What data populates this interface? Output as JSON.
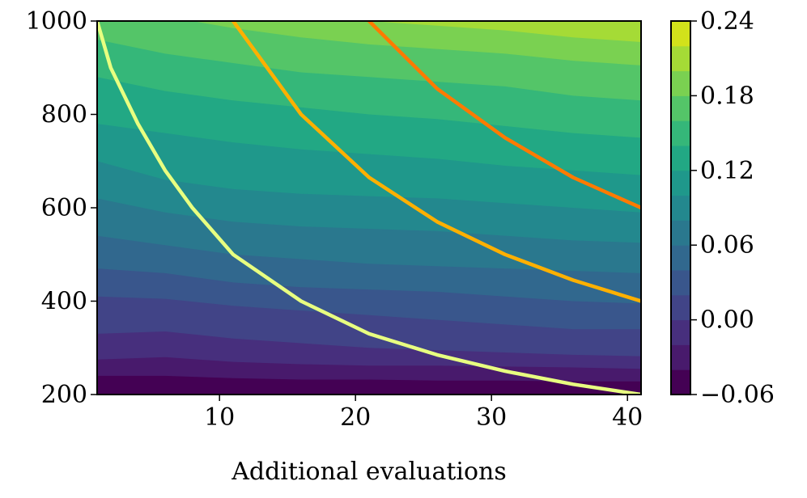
{
  "chart_data": {
    "type": "heatmap",
    "style": "filled-contour",
    "colormap": "viridis",
    "xlabel": "Additional evaluations",
    "ylabel": "",
    "xlim": [
      1,
      41
    ],
    "ylim": [
      200,
      1000
    ],
    "x_ticks": [
      "10",
      "20",
      "30",
      "40"
    ],
    "y_ticks": [
      "200",
      "400",
      "600",
      "800",
      "1000"
    ],
    "colorbar": {
      "range": [
        -0.06,
        0.24
      ],
      "tick_labels": [
        "−0.06",
        "0.00",
        "0.06",
        "0.12",
        "0.18",
        "0.24"
      ],
      "levels": [
        -0.06,
        -0.04,
        -0.02,
        0.0,
        0.02,
        0.04,
        0.06,
        0.08,
        0.1,
        0.12,
        0.14,
        0.16,
        0.18,
        0.2,
        0.22,
        0.24
      ],
      "colors": [
        "#440154",
        "#481a6c",
        "#472f7d",
        "#414487",
        "#39568c",
        "#31688e",
        "#2a788e",
        "#23888e",
        "#1f988b",
        "#22a884",
        "#35b779",
        "#54c568",
        "#7ad151",
        "#a5db36",
        "#d2e21b",
        "#fde725"
      ]
    },
    "contour_boundaries": [
      {
        "level": -0.04,
        "y": [
          240,
          240,
          235,
          232,
          232,
          230,
          230,
          228,
          228
        ]
      },
      {
        "level": -0.02,
        "y": [
          275,
          280,
          270,
          265,
          262,
          262,
          260,
          258,
          255
        ]
      },
      {
        "level": 0.0,
        "y": [
          330,
          335,
          320,
          310,
          300,
          295,
          290,
          285,
          282
        ]
      },
      {
        "level": 0.02,
        "y": [
          410,
          405,
          390,
          380,
          370,
          360,
          350,
          340,
          340
        ]
      },
      {
        "level": 0.04,
        "y": [
          470,
          460,
          440,
          430,
          425,
          420,
          410,
          400,
          395
        ]
      },
      {
        "level": 0.06,
        "y": [
          540,
          520,
          500,
          490,
          480,
          475,
          470,
          465,
          460
        ]
      },
      {
        "level": 0.08,
        "y": [
          620,
          590,
          570,
          560,
          555,
          550,
          540,
          530,
          525
        ]
      },
      {
        "level": 0.1,
        "y": [
          700,
          660,
          640,
          630,
          625,
          620,
          610,
          600,
          590
        ]
      },
      {
        "level": 0.12,
        "y": [
          780,
          760,
          740,
          725,
          715,
          705,
          690,
          680,
          670
        ]
      },
      {
        "level": 0.14,
        "y": [
          880,
          850,
          830,
          815,
          800,
          790,
          775,
          760,
          750
        ]
      },
      {
        "level": 0.16,
        "y": [
          960,
          930,
          910,
          890,
          880,
          870,
          860,
          840,
          830
        ]
      },
      {
        "level": 0.18,
        "y": [
          1040,
          1010,
          985,
          965,
          950,
          940,
          930,
          915,
          905
        ]
      },
      {
        "level": 0.2,
        "y": [
          1100,
          1080,
          1040,
          1020,
          1000,
          990,
          980,
          965,
          955
        ]
      }
    ],
    "series": [
      {
        "color": "#e8ff80",
        "x": [
          1,
          2,
          4,
          6,
          8,
          11,
          16,
          21,
          26,
          31,
          36,
          41
        ],
        "y": [
          1000,
          900,
          780,
          680,
          600,
          500,
          400,
          330,
          285,
          250,
          222,
          200
        ]
      },
      {
        "color": "#ffb000",
        "x": [
          11,
          16,
          21,
          26,
          31,
          36,
          41
        ],
        "y": [
          1000,
          800,
          665,
          570,
          500,
          445,
          400
        ]
      },
      {
        "color": "#ff7a00",
        "x": [
          21,
          26,
          31,
          36,
          41
        ],
        "y": [
          1000,
          855,
          750,
          665,
          600
        ]
      }
    ]
  }
}
